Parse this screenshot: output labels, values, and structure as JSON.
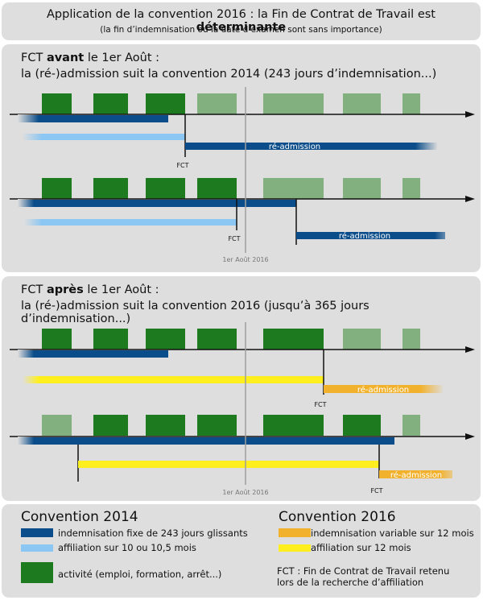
{
  "header": {
    "title_prefix": "Application de la convention 2016 : la Fin de Contrat de Travail est ",
    "title_bold": "déterminante",
    "subtitle": "(la fin d’indemnisation ou la date d’examen sont sans importance)"
  },
  "before": {
    "label_fct": "FCT ",
    "label_bold": "avant",
    "label_rest": " le 1er Août :",
    "line2": "la (ré-)admission suit la convention 2014 (243 jours d’indemnisation...)",
    "date_label": "1er Août 2016"
  },
  "after": {
    "label_fct": "FCT ",
    "label_bold": "après",
    "label_rest": " le 1er Août :",
    "line2": "la (ré-)admission suit la convention 2016 (jusqu’à 365 jours d’indemnisation...)",
    "date_label": "1er Août 2016"
  },
  "markers": {
    "fct": "FCT",
    "readmission": "ré-admission"
  },
  "legend": {
    "conv2014_title": "Convention 2014",
    "conv2016_title": "Convention 2016",
    "fixed_indemn": "indemnisation fixe de 243 jours glissants",
    "affil_2014": "affiliation sur 10 ou 10,5 mois",
    "activity": "activité (emploi, formation, arrêt...)",
    "var_indemn": "indemnisation variable sur 12 mois",
    "affil_2016": "affiliation sur 12 mois",
    "fct_note_line1": "FCT : Fin de Contrat de Travail retenu",
    "fct_note_line2": "lors de la recherche d’affiliation"
  },
  "colors": {
    "panel": "#dedede",
    "activity": "#1e7a1e",
    "activity_light": "#82b07e",
    "indemn_2014": "#0b4d8a",
    "affil_2014": "#8cc6f2",
    "indemn_2016": "#f2b12c",
    "affil_2016": "#ffef1f",
    "axis": "#111111",
    "date_line": "#9e9e9e"
  }
}
